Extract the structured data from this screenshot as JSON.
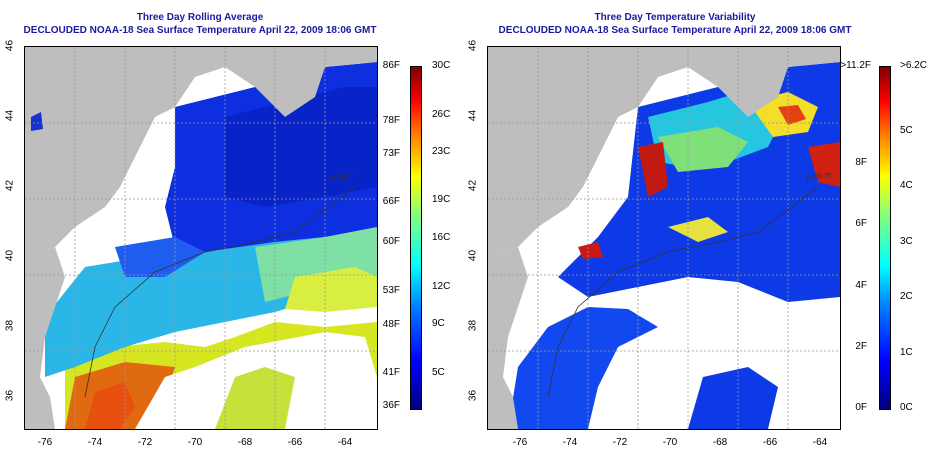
{
  "left_panel": {
    "title": "Three Day Rolling Average",
    "subtitle": "DECLOUDED NOAA-18 Sea Surface Temperature April 22, 2009 18:06 GMT",
    "y_ticks": [
      "46",
      "44",
      "42",
      "40",
      "38",
      "36"
    ],
    "x_ticks": [
      "-76",
      "-74",
      "-72",
      "-70",
      "-68",
      "-66",
      "-64"
    ],
    "colorbar_f": [
      "86F",
      "78F",
      "73F",
      "66F",
      "60F",
      "53F",
      "48F",
      "41F",
      "36F"
    ],
    "colorbar_c": [
      "30C",
      "26C",
      "23C",
      "19C",
      "16C",
      "12C",
      "9C",
      "5C"
    ],
    "contour_label": "1000 m"
  },
  "right_panel": {
    "title": "Three Day Temperature Variability",
    "subtitle": "DECLOUDED NOAA-18 Sea Surface Temperature April 22, 2009 18:06 GMT",
    "y_ticks": [
      "46",
      "44",
      "42",
      "40",
      "38",
      "36"
    ],
    "x_ticks": [
      "-76",
      "-74",
      "-72",
      "-70",
      "-68",
      "-66",
      "-64"
    ],
    "colorbar_f": [
      ">11.2F",
      "8F",
      "6F",
      "4F",
      "2F",
      "0F"
    ],
    "colorbar_c": [
      ">6.2C",
      "5C",
      "4C",
      "3C",
      "2C",
      "1C",
      "0C"
    ],
    "contour_label": "1000 m"
  },
  "colors": {
    "title": "#1a1aa0",
    "land": "#bebebe",
    "cloud": "#ffffff",
    "jet_scale": [
      "#00007f",
      "#0000ff",
      "#007fff",
      "#00ffff",
      "#7fff7f",
      "#ffff00",
      "#ff7f00",
      "#ff0000",
      "#7f0000"
    ]
  }
}
